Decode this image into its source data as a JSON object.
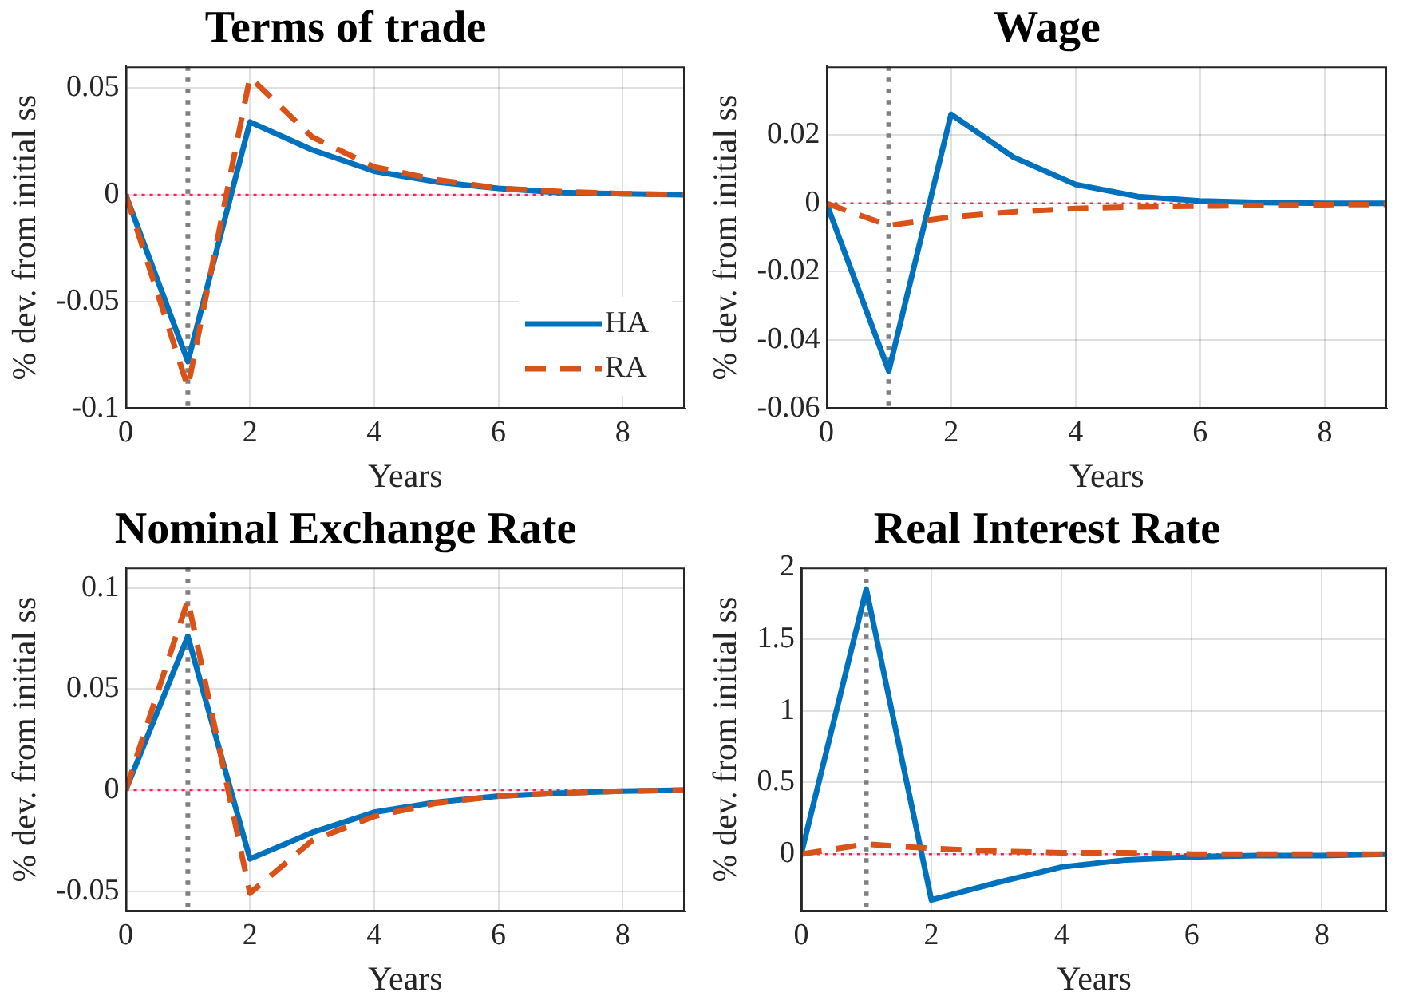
{
  "chart_data": [
    {
      "type": "line",
      "title": "Terms of trade",
      "xlabel": "Years",
      "ylabel": "% dev. from initial ss",
      "x": [
        0,
        1,
        2,
        3,
        4,
        5,
        6,
        7,
        8,
        9
      ],
      "xlim": [
        0,
        9
      ],
      "xticks": [
        0,
        2,
        4,
        6,
        8
      ],
      "ylim": [
        -0.1,
        0.06
      ],
      "yticks": [
        -0.1,
        -0.05,
        0,
        0.05
      ],
      "grid": true,
      "legend": "bottom right",
      "marker": "none",
      "series": [
        {
          "name": "HA",
          "color": "#0072bd",
          "line_style": "solid",
          "values": [
            0,
            -0.078,
            0.034,
            0.021,
            0.011,
            0.006,
            0.003,
            0.001,
            0.0005,
            0
          ]
        },
        {
          "name": "RA",
          "color": "#d95319",
          "line_style": "dashed",
          "values": [
            0,
            -0.09,
            0.055,
            0.027,
            0.013,
            0.007,
            0.003,
            0.0015,
            0.0005,
            0
          ]
        }
      ],
      "ref_lines": [
        {
          "axis": "y",
          "value": 0,
          "color": "#ff1f5b",
          "line_style": "dotted"
        },
        {
          "axis": "x",
          "value": 1,
          "color": "#808080",
          "line_style": "dotted"
        }
      ]
    },
    {
      "type": "line",
      "title": "Wage",
      "xlabel": "Years",
      "ylabel": "% dev. from initial ss",
      "x": [
        0,
        1,
        2,
        3,
        4,
        5,
        6,
        7,
        8,
        9
      ],
      "xlim": [
        0,
        9
      ],
      "xticks": [
        0,
        2,
        4,
        6,
        8
      ],
      "ylim": [
        -0.06,
        0.04
      ],
      "yticks": [
        -0.06,
        -0.04,
        -0.02,
        0,
        0.02
      ],
      "grid": true,
      "legend": false,
      "marker": "none",
      "series": [
        {
          "color": "#0072bd",
          "line_style": "solid",
          "values": [
            0,
            -0.049,
            0.026,
            0.0135,
            0.0055,
            0.002,
            0.0007,
            0.0002,
            0,
            0
          ]
        },
        {
          "color": "#d95319",
          "line_style": "dashed",
          "values": [
            0,
            -0.0065,
            -0.004,
            -0.0025,
            -0.0015,
            -0.001,
            -0.0008,
            -0.0006,
            -0.0004,
            -0.0003
          ]
        }
      ],
      "ref_lines": [
        {
          "axis": "y",
          "value": 0,
          "color": "#ff1f5b",
          "line_style": "dotted"
        },
        {
          "axis": "x",
          "value": 1,
          "color": "#808080",
          "line_style": "dotted"
        }
      ]
    },
    {
      "type": "line",
      "title": "Nominal Exchange Rate",
      "xlabel": "Years",
      "ylabel": "% dev. from initial ss",
      "x": [
        0,
        1,
        2,
        3,
        4,
        5,
        6,
        7,
        8,
        9
      ],
      "xlim": [
        0,
        9
      ],
      "xticks": [
        0,
        2,
        4,
        6,
        8
      ],
      "ylim": [
        -0.06,
        0.11
      ],
      "yticks": [
        -0.05,
        0,
        0.05,
        0.1
      ],
      "grid": true,
      "legend": false,
      "marker": "none",
      "series": [
        {
          "color": "#0072bd",
          "line_style": "solid",
          "values": [
            0,
            0.076,
            -0.034,
            -0.021,
            -0.011,
            -0.006,
            -0.003,
            -0.0015,
            -0.0005,
            0
          ]
        },
        {
          "color": "#d95319",
          "line_style": "dashed",
          "values": [
            0,
            0.094,
            -0.051,
            -0.025,
            -0.013,
            -0.0065,
            -0.003,
            -0.0015,
            -0.0005,
            0
          ]
        }
      ],
      "ref_lines": [
        {
          "axis": "y",
          "value": 0,
          "color": "#ff1f5b",
          "line_style": "dotted"
        },
        {
          "axis": "x",
          "value": 1,
          "color": "#808080",
          "line_style": "dotted"
        }
      ]
    },
    {
      "type": "line",
      "title": "Real Interest Rate",
      "xlabel": "Years",
      "ylabel": "% dev. from initial ss",
      "x": [
        0,
        1,
        2,
        3,
        4,
        5,
        6,
        7,
        8,
        9
      ],
      "xlim": [
        0,
        9
      ],
      "xticks": [
        0,
        2,
        4,
        6,
        8
      ],
      "ylim": [
        -0.4,
        2
      ],
      "yticks": [
        0,
        0.5,
        1,
        1.5,
        2
      ],
      "grid": true,
      "legend": false,
      "marker": "none",
      "series": [
        {
          "color": "#0072bd",
          "line_style": "solid",
          "values": [
            0,
            1.85,
            -0.32,
            -0.2,
            -0.09,
            -0.04,
            -0.02,
            -0.01,
            -0.01,
            0
          ]
        },
        {
          "color": "#d95319",
          "line_style": "dashed",
          "values": [
            0,
            0.07,
            0.04,
            0.02,
            0.01,
            0.01,
            0,
            0,
            0,
            0
          ]
        }
      ],
      "ref_lines": [
        {
          "axis": "y",
          "value": 0,
          "color": "#ff1f5b",
          "line_style": "dotted"
        },
        {
          "axis": "x",
          "value": 1,
          "color": "#808080",
          "line_style": "dotted"
        }
      ]
    }
  ]
}
